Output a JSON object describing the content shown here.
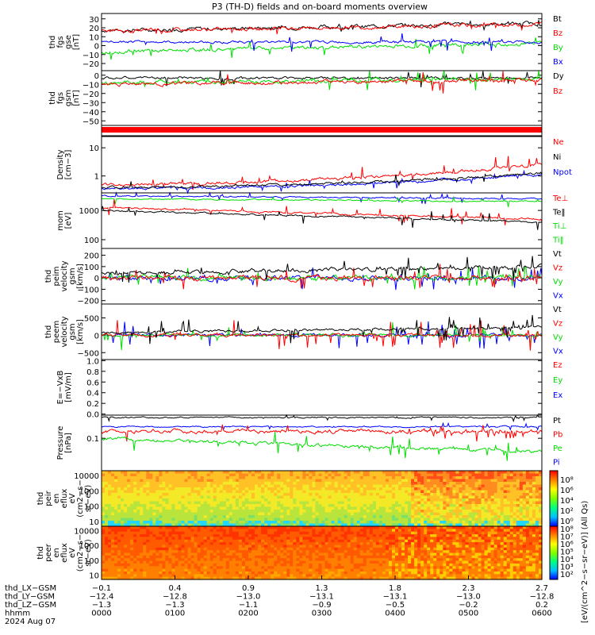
{
  "title": "P3 (TH-D) fields and on-board moments overview",
  "colors": {
    "black": "#000000",
    "red": "#ff0000",
    "green": "#00dd00",
    "blue": "#0000ff"
  },
  "panels": [
    {
      "id": "p1",
      "ylabel": [
        "thd",
        "fgs",
        "gse",
        "[nT]"
      ],
      "ticks": [
        "30",
        "20",
        "10",
        "0",
        "−10",
        "−20"
      ],
      "tickvals": [
        30,
        20,
        10,
        0,
        -10,
        -20
      ],
      "ylim": [
        -28,
        36
      ],
      "legend": [
        {
          "t": "Bt",
          "c": "black"
        },
        {
          "t": "Bz",
          "c": "red"
        },
        {
          "t": "By",
          "c": "green"
        },
        {
          "t": "Bx",
          "c": "blue"
        }
      ]
    },
    {
      "id": "p2",
      "ylabel": [
        "thd",
        "fgs",
        "gsm",
        "[nT]"
      ],
      "ticks": [
        "0",
        "−10",
        "−20",
        "−30",
        "−40",
        "−50"
      ],
      "tickvals": [
        0,
        -10,
        -20,
        -30,
        -40,
        -50
      ],
      "ylim": [
        -55,
        5
      ],
      "legend": [
        {
          "t": "Dy",
          "c": "black"
        },
        {
          "t": "Bz",
          "c": "red"
        }
      ]
    },
    {
      "id": "p4",
      "ylabel": [
        "Density",
        "[cm−3]"
      ],
      "ticks": [
        "10",
        "1"
      ],
      "tickvals": [
        1,
        0
      ],
      "ylim": [
        -0.6,
        1.4
      ],
      "log": true,
      "legend": [
        {
          "t": "Ne",
          "c": "red"
        },
        {
          "t": "Ni",
          "c": "black"
        },
        {
          "t": "Npot",
          "c": "blue"
        }
      ]
    },
    {
      "id": "p5",
      "ylabel": [
        "mom",
        "[eV]"
      ],
      "ticks": [
        "1000",
        "100"
      ],
      "tickvals": [
        3,
        2
      ],
      "ylim": [
        1.7,
        3.6
      ],
      "log": true,
      "legend": [
        {
          "t": "Te⊥",
          "c": "red"
        },
        {
          "t": "Te‖",
          "c": "black"
        },
        {
          "t": "Ti⊥",
          "c": "green"
        },
        {
          "t": "Ti‖",
          "c": "green"
        }
      ]
    },
    {
      "id": "p6",
      "ylabel": [
        "thd",
        "peim",
        "velocity",
        "gsm",
        "[km/s]"
      ],
      "ticks": [
        "200",
        "100",
        "0",
        "−100",
        "−200"
      ],
      "tickvals": [
        200,
        100,
        0,
        -100,
        -200
      ],
      "ylim": [
        -230,
        260
      ],
      "legend": [
        {
          "t": "Vt",
          "c": "black"
        },
        {
          "t": "Vz",
          "c": "red"
        },
        {
          "t": "Vy",
          "c": "green"
        },
        {
          "t": "Vx",
          "c": "blue"
        }
      ]
    },
    {
      "id": "p7",
      "ylabel": [
        "thd",
        "peem",
        "velocity",
        "gsm",
        "[km/s]"
      ],
      "ticks": [
        "500",
        "0",
        "−500"
      ],
      "tickvals": [
        500,
        0,
        -500
      ],
      "ylim": [
        -700,
        900
      ],
      "legend": [
        {
          "t": "Vt",
          "c": "black"
        },
        {
          "t": "Vz",
          "c": "red"
        },
        {
          "t": "Vy",
          "c": "green"
        },
        {
          "t": "Vx",
          "c": "blue"
        }
      ]
    },
    {
      "id": "p8",
      "ylabel": [
        "E=−VxB",
        "[mV/m]"
      ],
      "ticks": [
        "1.0",
        "0.8",
        "0.6",
        "0.4",
        "0.2",
        "0.0"
      ],
      "tickvals": [
        1.0,
        0.8,
        0.6,
        0.4,
        0.2,
        0.0
      ],
      "ylim": [
        -0.02,
        1.02
      ],
      "legend": [
        {
          "t": "Ez",
          "c": "red"
        },
        {
          "t": "Ey",
          "c": "green"
        },
        {
          "t": "Ex",
          "c": "blue"
        }
      ]
    },
    {
      "id": "p9",
      "ylabel": [
        "Pressure",
        "[nPa]"
      ],
      "ticks": [
        "0.1"
      ],
      "tickvals": [
        -1
      ],
      "ylim": [
        -1.7,
        -0.5
      ],
      "log": true,
      "legend": [
        {
          "t": "Pt",
          "c": "black"
        },
        {
          "t": "Pb",
          "c": "red"
        },
        {
          "t": "Pe",
          "c": "green"
        },
        {
          "t": "Pi",
          "c": "blue"
        }
      ]
    },
    {
      "id": "p10",
      "ylabel": [
        "thd",
        "peir",
        "en",
        "eflux",
        "eV",
        "(cm2−s−",
        "sr−eV)"
      ],
      "ticks": [
        "10000",
        "1000",
        "100",
        "10"
      ],
      "tickvals": [
        4,
        3,
        2,
        1
      ],
      "ylim": [
        0.7,
        4.3
      ],
      "legend": []
    },
    {
      "id": "p11",
      "ylabel": [
        "thd",
        "peer",
        "en",
        "eflux",
        "eV",
        "(cm2−s−",
        "sr−eV)"
      ],
      "ticks": [
        "10000",
        "1000",
        "100",
        "10"
      ],
      "tickvals": [
        4,
        3,
        2,
        1
      ],
      "ylim": [
        0.7,
        4.3
      ],
      "legend": []
    }
  ],
  "colorbar": {
    "label": "[eV/(cm^2−s−sr−eV)] (All Qs)",
    "ticks1": [
      "10⁸",
      "10⁶",
      "10⁴",
      "10²",
      "10⁰"
    ],
    "ticks2": [
      "10⁸",
      "10⁷",
      "10⁶",
      "10⁵",
      "10⁴",
      "10³",
      "10²"
    ]
  },
  "bottom": {
    "row_labels": [
      "thd_LX−GSM",
      "thd_LY−GSM",
      "thd_LZ−GSM",
      "hhmm",
      "2024 Aug 07"
    ],
    "lx": [
      "−0.1",
      "0.4",
      "0.9",
      "1.3",
      "1.8",
      "2.3",
      "2.7"
    ],
    "ly": [
      "−12.4",
      "−12.8",
      "−13.0",
      "−13.1",
      "−13.1",
      "−13.0",
      "−12.8"
    ],
    "lz": [
      "−1.3",
      "−1.3",
      "−1.1",
      "−0.9",
      "−0.5",
      "−0.2",
      "0.2"
    ],
    "hhmm": [
      "0000",
      "0100",
      "0200",
      "0300",
      "0400",
      "0500",
      "0600"
    ]
  },
  "chart_data": {
    "type": "line",
    "title": "P3 (TH-D) fields and on-board moments overview",
    "x_categories": [
      "0000",
      "0100",
      "0200",
      "0300",
      "0400",
      "0500",
      "0600"
    ],
    "series_summary": [
      {
        "panel": "thd fgs gse",
        "name": "Bt",
        "values": [
          17,
          19,
          21,
          22,
          22,
          25,
          26
        ]
      },
      {
        "panel": "thd fgs gse",
        "name": "By",
        "values": [
          -7,
          -6,
          -5,
          -3,
          -2,
          2,
          4
        ]
      },
      {
        "panel": "thd fgs gse",
        "name": "Bx",
        "values": [
          4,
          4,
          4,
          3,
          3,
          4,
          4
        ]
      },
      {
        "panel": "Density",
        "name": "Ne",
        "values": [
          0.5,
          0.5,
          0.5,
          0.6,
          1.0,
          2.0,
          1.5
        ]
      },
      {
        "panel": "Density",
        "name": "Ni",
        "values": [
          0.4,
          0.4,
          0.45,
          0.5,
          0.7,
          1.0,
          0.8
        ]
      },
      {
        "panel": "peim velocity",
        "name": "Vt",
        "values": [
          40,
          45,
          50,
          60,
          80,
          100,
          90
        ]
      },
      {
        "panel": "Pressure",
        "name": "Pt",
        "values": [
          0.28,
          0.28,
          0.27,
          0.27,
          0.27,
          0.28,
          0.29
        ]
      }
    ]
  }
}
